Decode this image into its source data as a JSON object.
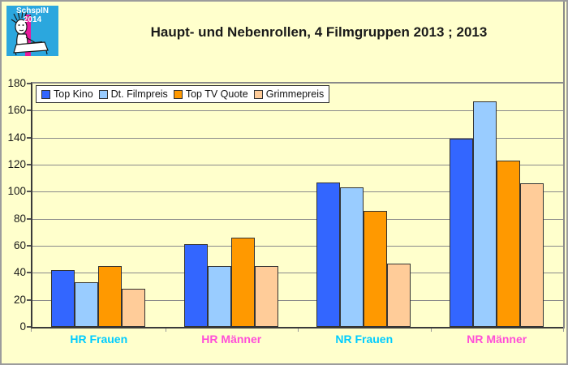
{
  "logo": {
    "text": "SchspIN 2014",
    "colors": {
      "background": "#2BA7DE",
      "stripe": "#E8189B",
      "text": "#FFFFFF",
      "ink": "#1A1A1A",
      "paper": "#FFFFFF"
    }
  },
  "chart_data": {
    "type": "bar",
    "title": "Haupt- und Nebenrollen, 4 Filmgruppen 2013 ; 2013",
    "categories": [
      {
        "label": "HR Frauen",
        "color": "#00CCFF"
      },
      {
        "label": "HR Männer",
        "color": "#FF4FD8"
      },
      {
        "label": "NR Frauen",
        "color": "#00CCFF"
      },
      {
        "label": "NR Männer",
        "color": "#FF4FD8"
      }
    ],
    "series": [
      {
        "name": "Top Kino",
        "color": "#3366FF",
        "values": [
          42,
          61,
          107,
          139
        ]
      },
      {
        "name": "Dt. Filmpreis",
        "color": "#99CCFF",
        "values": [
          33,
          45,
          103,
          167
        ]
      },
      {
        "name": "Top TV Quote",
        "color": "#FF9900",
        "values": [
          45,
          66,
          86,
          123
        ]
      },
      {
        "name": "Grimmepreis",
        "color": "#FFCC99",
        "values": [
          28,
          45,
          47,
          106
        ]
      }
    ],
    "ylim": [
      0,
      180
    ],
    "yticks": [
      0,
      20,
      40,
      60,
      80,
      100,
      120,
      140,
      160,
      180
    ],
    "grid": true,
    "legend_position": "top-left",
    "colors": {
      "background": "#FFFFCC",
      "grid": "#8A8A8A",
      "axis": "#3A3A3A",
      "bar_border": "#333333",
      "frame_border": "#9C9C9C",
      "title_text": "#1A1A1A"
    }
  }
}
